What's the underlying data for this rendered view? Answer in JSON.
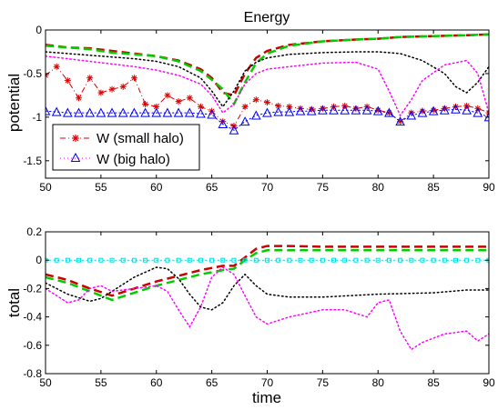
{
  "chart_data": [
    {
      "type": "line",
      "title": "Energy",
      "xlabel": "",
      "ylabel": "potential",
      "xlim": [
        50,
        90
      ],
      "ylim": [
        -1.7,
        0
      ],
      "xticks": [
        "50",
        "55",
        "60",
        "65",
        "70",
        "75",
        "80",
        "85",
        "90"
      ],
      "yticks": [
        "0",
        "-0.5",
        "-1",
        "-1.5"
      ],
      "legend_position": "bottom-left",
      "legend": [
        {
          "label": "W (small halo)",
          "color": "#dd0000",
          "style": "dash-dot",
          "marker": "asterisk"
        },
        {
          "label": "W (big halo)",
          "color": "#0000ff",
          "style": "dotted",
          "marker": "triangle"
        }
      ],
      "series": [
        {
          "color": "#cc0000",
          "style": "dashed",
          "width": 2.5,
          "x": [
            50,
            52,
            54,
            56,
            58,
            60,
            62,
            64,
            65,
            66,
            67,
            68,
            69,
            70,
            72,
            75,
            78,
            80,
            82,
            85,
            88,
            90
          ],
          "y": [
            -0.17,
            -0.2,
            -0.21,
            -0.24,
            -0.27,
            -0.3,
            -0.35,
            -0.45,
            -0.55,
            -0.72,
            -0.75,
            -0.5,
            -0.32,
            -0.24,
            -0.17,
            -0.13,
            -0.11,
            -0.1,
            -0.08,
            -0.07,
            -0.06,
            -0.05
          ]
        },
        {
          "color": "#00cc00",
          "style": "dashed",
          "width": 2.5,
          "x": [
            50,
            52,
            54,
            56,
            58,
            60,
            62,
            64,
            65,
            66,
            67,
            68,
            69,
            70,
            72,
            75,
            78,
            80,
            82,
            85,
            88,
            90
          ],
          "y": [
            -0.18,
            -0.2,
            -0.22,
            -0.26,
            -0.28,
            -0.3,
            -0.36,
            -0.47,
            -0.57,
            -0.68,
            -0.85,
            -0.6,
            -0.38,
            -0.27,
            -0.18,
            -0.13,
            -0.11,
            -0.1,
            -0.08,
            -0.07,
            -0.06,
            -0.05
          ]
        },
        {
          "color": "#000000",
          "style": "dotted",
          "width": 1.5,
          "x": [
            50,
            52,
            54,
            56,
            58,
            60,
            62,
            64,
            65,
            66,
            67,
            68,
            69,
            70,
            72,
            75,
            78,
            80,
            82,
            84,
            86,
            87,
            88,
            89,
            90
          ],
          "y": [
            -0.25,
            -0.27,
            -0.29,
            -0.31,
            -0.33,
            -0.36,
            -0.42,
            -0.55,
            -0.7,
            -0.88,
            -0.7,
            -0.47,
            -0.37,
            -0.32,
            -0.28,
            -0.26,
            -0.25,
            -0.25,
            -0.27,
            -0.35,
            -0.5,
            -0.65,
            -0.72,
            -0.6,
            -0.42
          ]
        },
        {
          "color": "#ff00ff",
          "style": "dotted",
          "width": 1.5,
          "x": [
            50,
            52,
            54,
            56,
            58,
            60,
            62,
            64,
            65,
            66,
            67,
            68,
            69,
            70,
            72,
            75,
            78,
            80,
            81,
            82,
            83,
            84,
            86,
            88,
            89,
            90
          ],
          "y": [
            -0.3,
            -0.33,
            -0.36,
            -0.39,
            -0.42,
            -0.46,
            -0.52,
            -0.62,
            -0.75,
            -0.95,
            -0.85,
            -0.62,
            -0.5,
            -0.45,
            -0.42,
            -0.38,
            -0.37,
            -0.45,
            -0.7,
            -0.98,
            -0.8,
            -0.58,
            -0.4,
            -0.35,
            -0.5,
            -0.95
          ]
        },
        {
          "name": "W (small halo)",
          "color": "#dd0000",
          "style": "dashdot",
          "width": 1,
          "marker": "asterisk",
          "x": [
            50,
            51,
            52,
            53,
            54,
            55,
            56,
            57,
            58,
            59,
            60,
            61,
            62,
            63,
            64,
            65,
            66,
            67,
            68,
            69,
            70,
            71,
            72,
            73,
            74,
            75,
            76,
            77,
            78,
            79,
            80,
            81,
            82,
            83,
            84,
            85,
            86,
            87,
            88,
            89,
            90
          ],
          "y": [
            -0.52,
            -0.42,
            -0.58,
            -0.78,
            -0.55,
            -0.72,
            -0.68,
            -0.65,
            -0.55,
            -0.85,
            -0.88,
            -0.75,
            -0.82,
            -0.78,
            -0.88,
            -0.93,
            -1.05,
            -1.1,
            -0.88,
            -0.8,
            -0.83,
            -0.87,
            -0.88,
            -0.9,
            -0.91,
            -0.9,
            -0.88,
            -0.87,
            -0.9,
            -0.88,
            -0.92,
            -0.95,
            -1.05,
            -0.95,
            -0.93,
            -0.92,
            -0.9,
            -0.88,
            -0.87,
            -0.9,
            -0.95
          ]
        },
        {
          "name": "W (big halo)",
          "color": "#0000ff",
          "style": "dotted",
          "width": 1,
          "marker": "triangle",
          "x": [
            50,
            51,
            52,
            53,
            54,
            55,
            56,
            57,
            58,
            59,
            60,
            61,
            62,
            63,
            64,
            65,
            66,
            67,
            68,
            69,
            70,
            71,
            72,
            73,
            74,
            75,
            76,
            77,
            78,
            79,
            80,
            81,
            82,
            83,
            84,
            85,
            86,
            87,
            88,
            89,
            90
          ],
          "y": [
            -0.93,
            -0.94,
            -0.95,
            -0.95,
            -0.95,
            -0.95,
            -0.95,
            -0.95,
            -0.95,
            -0.95,
            -0.95,
            -0.95,
            -0.95,
            -0.95,
            -0.96,
            -0.97,
            -1.08,
            -1.15,
            -1.05,
            -0.98,
            -0.95,
            -0.94,
            -0.94,
            -0.93,
            -0.93,
            -0.92,
            -0.92,
            -0.92,
            -0.92,
            -0.92,
            -0.93,
            -0.95,
            -1.05,
            -0.98,
            -0.95,
            -0.93,
            -0.92,
            -0.91,
            -0.92,
            -0.95,
            -1.0
          ]
        }
      ]
    },
    {
      "type": "line",
      "title": "",
      "xlabel": "time",
      "ylabel": "total",
      "xlim": [
        50,
        90
      ],
      "ylim": [
        -0.8,
        0.2
      ],
      "xticks": [
        "50",
        "55",
        "60",
        "65",
        "70",
        "75",
        "80",
        "85",
        "90"
      ],
      "yticks": [
        "0.2",
        "0",
        "-0.2",
        "-0.4",
        "-0.6",
        "-0.8"
      ],
      "series": [
        {
          "color": "#cc0000",
          "style": "dashed",
          "width": 2.5,
          "x": [
            50,
            52,
            54,
            56,
            58,
            60,
            62,
            64,
            66,
            67,
            68,
            69,
            70,
            72,
            75,
            80,
            85,
            90
          ],
          "y": [
            -0.1,
            -0.14,
            -0.2,
            -0.25,
            -0.2,
            -0.15,
            -0.11,
            -0.07,
            -0.04,
            -0.04,
            0.02,
            0.08,
            0.1,
            0.1,
            0.095,
            0.095,
            0.095,
            0.095
          ]
        },
        {
          "color": "#00cc00",
          "style": "dashed",
          "width": 2.5,
          "x": [
            50,
            52,
            54,
            56,
            58,
            60,
            62,
            64,
            66,
            67,
            68,
            69,
            70,
            72,
            75,
            80,
            85,
            90
          ],
          "y": [
            -0.12,
            -0.16,
            -0.22,
            -0.28,
            -0.23,
            -0.18,
            -0.14,
            -0.1,
            -0.07,
            -0.06,
            0.0,
            0.05,
            0.07,
            0.07,
            0.07,
            0.07,
            0.07,
            0.07
          ]
        },
        {
          "color": "#000000",
          "style": "dotted",
          "width": 1.5,
          "x": [
            50,
            52,
            54,
            55,
            56,
            58,
            60,
            61,
            62,
            63,
            64,
            65,
            66,
            67,
            68,
            69,
            70,
            72,
            75,
            80,
            85,
            88,
            90
          ],
          "y": [
            -0.16,
            -0.24,
            -0.29,
            -0.27,
            -0.22,
            -0.12,
            -0.05,
            -0.06,
            -0.13,
            -0.24,
            -0.33,
            -0.35,
            -0.3,
            -0.18,
            -0.1,
            -0.18,
            -0.24,
            -0.26,
            -0.26,
            -0.24,
            -0.23,
            -0.21,
            -0.21
          ]
        },
        {
          "color": "#ff00ff",
          "style": "dotted",
          "width": 1.5,
          "x": [
            50,
            51,
            52,
            53,
            54,
            55,
            56,
            58,
            60,
            61,
            62,
            63,
            64,
            65,
            66,
            67,
            68,
            69,
            70,
            72,
            75,
            77,
            79,
            80,
            81,
            82,
            83,
            84,
            86,
            88,
            89,
            90
          ],
          "y": [
            -0.2,
            -0.25,
            -0.3,
            -0.28,
            -0.2,
            -0.18,
            -0.22,
            -0.2,
            -0.18,
            -0.22,
            -0.35,
            -0.47,
            -0.33,
            -0.12,
            -0.05,
            -0.1,
            -0.25,
            -0.4,
            -0.45,
            -0.4,
            -0.35,
            -0.35,
            -0.4,
            -0.3,
            -0.28,
            -0.5,
            -0.63,
            -0.58,
            -0.52,
            -0.5,
            -0.57,
            -0.52
          ]
        },
        {
          "color": "#00dddd",
          "style": "dotted",
          "width": 1,
          "marker": "square",
          "x": [
            50,
            51,
            52,
            53,
            54,
            55,
            56,
            57,
            58,
            59,
            60,
            61,
            62,
            63,
            64,
            65,
            66,
            67,
            68,
            69,
            70,
            71,
            72,
            73,
            74,
            75,
            76,
            77,
            78,
            79,
            80,
            81,
            82,
            83,
            84,
            85,
            86,
            87,
            88,
            89,
            90
          ],
          "y": [
            0,
            0,
            0,
            0,
            0,
            0,
            0,
            0,
            0,
            0,
            0,
            0,
            0,
            0,
            0,
            0,
            0,
            0,
            0,
            0,
            0,
            0,
            0,
            0,
            0,
            0,
            0,
            0,
            0,
            0,
            0,
            0,
            0,
            0,
            0,
            0,
            0,
            0,
            0,
            0,
            0
          ]
        }
      ]
    }
  ]
}
